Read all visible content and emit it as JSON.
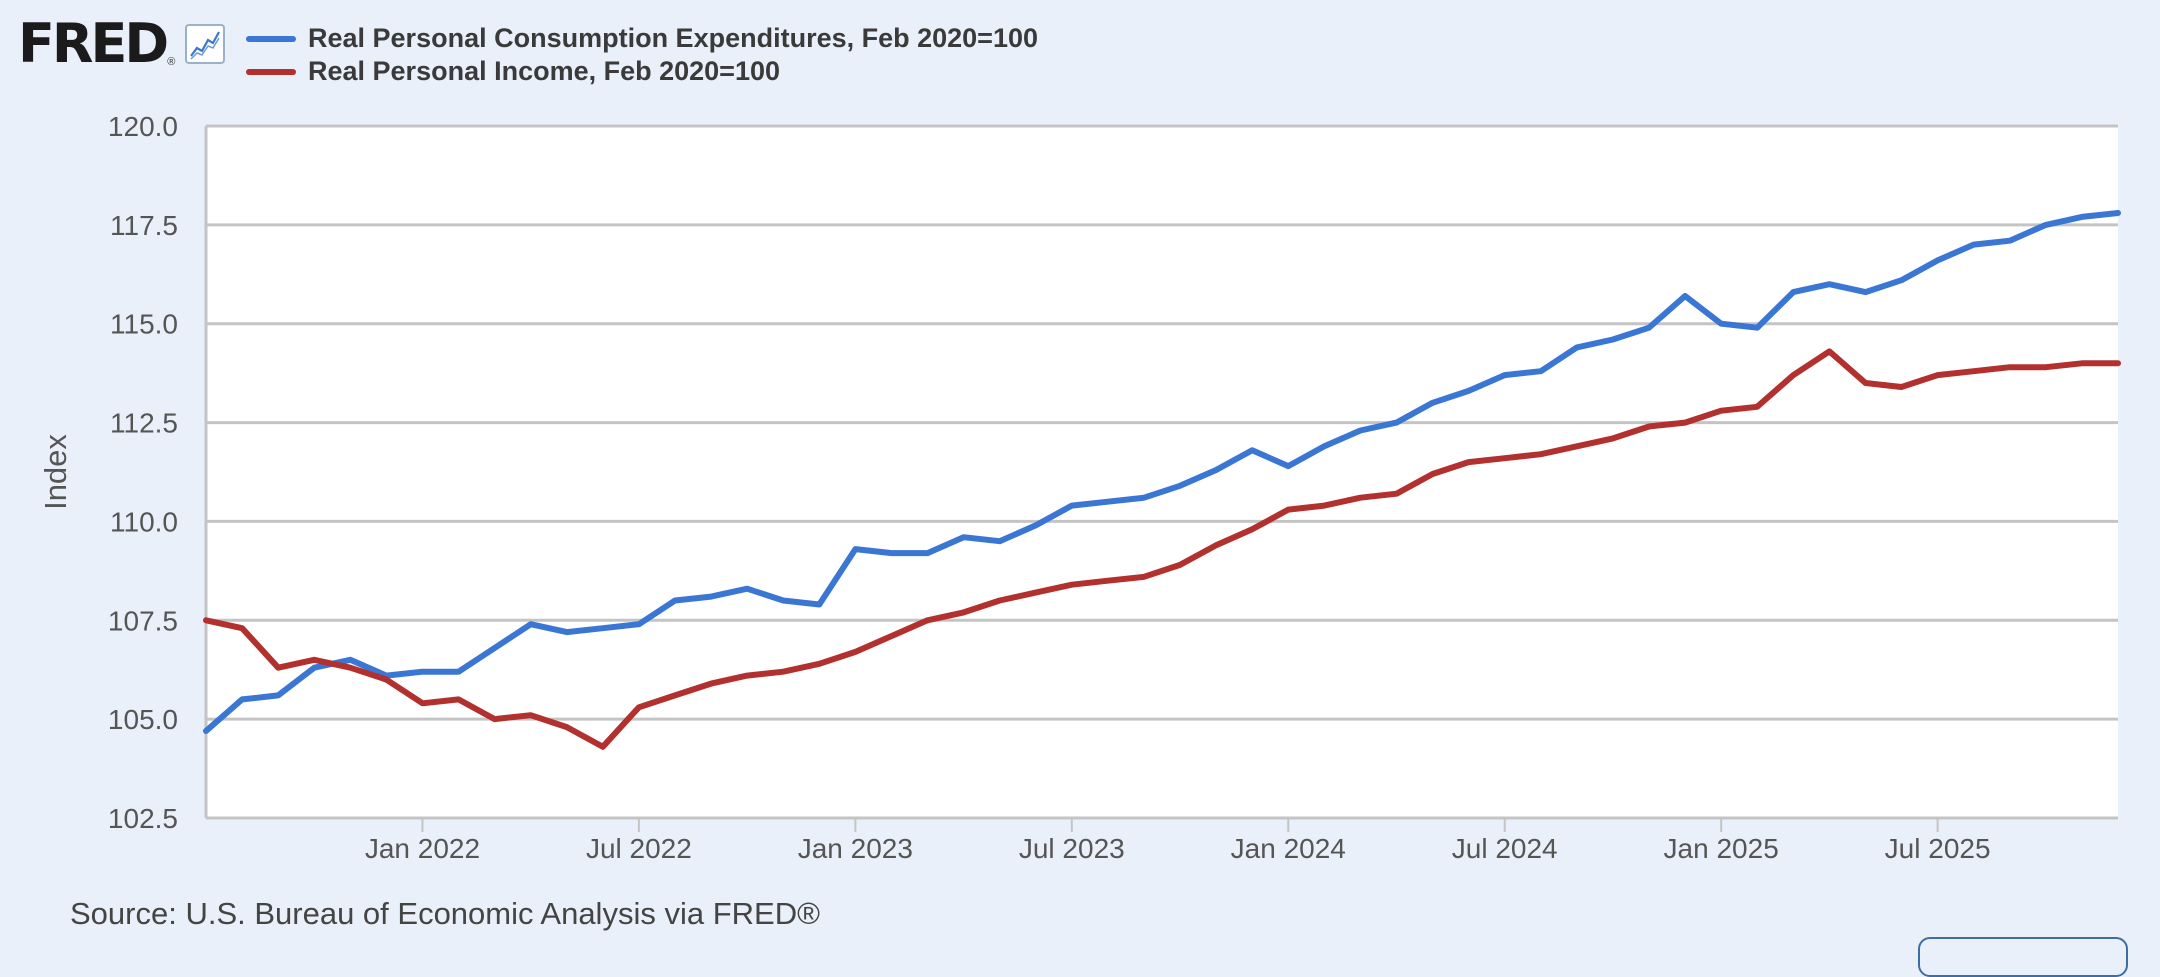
{
  "header": {
    "logo_text": "FRED",
    "logo_reg": "®"
  },
  "footer": {
    "source": "Source: U.S. Bureau of Economic Analysis via FRED®"
  },
  "colors": {
    "background": "#eaf0f9",
    "plot_background": "#ffffff",
    "grid": "#c4c4c4",
    "pce_series": "#3a76d3",
    "income_series": "#b2302e"
  },
  "chart_data": {
    "type": "line",
    "title": "",
    "ylabel": "Index",
    "xlabel": "",
    "ylim": [
      102.5,
      120.0
    ],
    "yticks": [
      102.5,
      105.0,
      107.5,
      110.0,
      112.5,
      115.0,
      117.5,
      120.0
    ],
    "ytick_labels": [
      "102.5",
      "105.0",
      "107.5",
      "110.0",
      "112.5",
      "115.0",
      "117.5",
      "120.0"
    ],
    "x_range": [
      "2021-07",
      "2025-12"
    ],
    "xticks": [
      {
        "date": "2022-01",
        "label": "Jan 2022"
      },
      {
        "date": "2022-07",
        "label": "Jul 2022"
      },
      {
        "date": "2023-01",
        "label": "Jan 2023"
      },
      {
        "date": "2023-07",
        "label": "Jul 2023"
      },
      {
        "date": "2024-01",
        "label": "Jan 2024"
      },
      {
        "date": "2024-07",
        "label": "Jul 2024"
      },
      {
        "date": "2025-01",
        "label": "Jan 2025"
      },
      {
        "date": "2025-07",
        "label": "Jul 2025"
      }
    ],
    "grid": true,
    "legend_position": "top-left",
    "x": [
      "2021-07",
      "2021-08",
      "2021-09",
      "2021-10",
      "2021-11",
      "2021-12",
      "2022-01",
      "2022-02",
      "2022-03",
      "2022-04",
      "2022-05",
      "2022-06",
      "2022-07",
      "2022-08",
      "2022-09",
      "2022-10",
      "2022-11",
      "2022-12",
      "2023-01",
      "2023-02",
      "2023-03",
      "2023-04",
      "2023-05",
      "2023-06",
      "2023-07",
      "2023-08",
      "2023-09",
      "2023-10",
      "2023-11",
      "2023-12",
      "2024-01",
      "2024-02",
      "2024-03",
      "2024-04",
      "2024-05",
      "2024-06",
      "2024-07",
      "2024-08",
      "2024-09",
      "2024-10",
      "2024-11",
      "2024-12",
      "2025-01",
      "2025-02",
      "2025-03",
      "2025-04",
      "2025-05",
      "2025-06",
      "2025-07",
      "2025-08",
      "2025-09",
      "2025-10",
      "2025-11",
      "2025-12"
    ],
    "series": [
      {
        "name": "Real Personal Consumption Expenditures, Feb 2020=100",
        "color": "#3a76d3",
        "values": [
          104.7,
          105.5,
          105.6,
          106.3,
          106.5,
          106.1,
          106.2,
          106.2,
          106.8,
          107.4,
          107.2,
          107.3,
          107.4,
          108.0,
          108.1,
          108.3,
          108.0,
          107.9,
          109.3,
          109.2,
          109.2,
          109.6,
          109.5,
          109.9,
          110.4,
          110.5,
          110.6,
          110.9,
          111.3,
          111.8,
          111.4,
          111.9,
          112.3,
          112.5,
          113.0,
          113.3,
          113.7,
          113.8,
          114.4,
          114.6,
          114.9,
          115.7,
          115.0,
          114.9,
          115.8,
          116.0,
          115.8,
          116.1,
          116.6,
          117.0,
          117.1,
          117.5,
          117.7,
          117.8
        ]
      },
      {
        "name": "Real Personal Income, Feb 2020=100",
        "color": "#b2302e",
        "values": [
          107.5,
          107.3,
          106.3,
          106.5,
          106.3,
          106.0,
          105.4,
          105.5,
          105.0,
          105.1,
          104.8,
          104.3,
          105.3,
          105.6,
          105.9,
          106.1,
          106.2,
          106.4,
          106.7,
          107.1,
          107.5,
          107.7,
          108.0,
          108.2,
          108.4,
          108.5,
          108.6,
          108.9,
          109.4,
          109.8,
          110.3,
          110.4,
          110.6,
          110.7,
          111.2,
          111.5,
          111.6,
          111.7,
          111.9,
          112.1,
          112.4,
          112.5,
          112.8,
          112.9,
          113.7,
          114.3,
          113.5,
          113.4,
          113.7,
          113.8,
          113.9,
          113.9,
          114.0,
          114.0
        ]
      }
    ]
  }
}
